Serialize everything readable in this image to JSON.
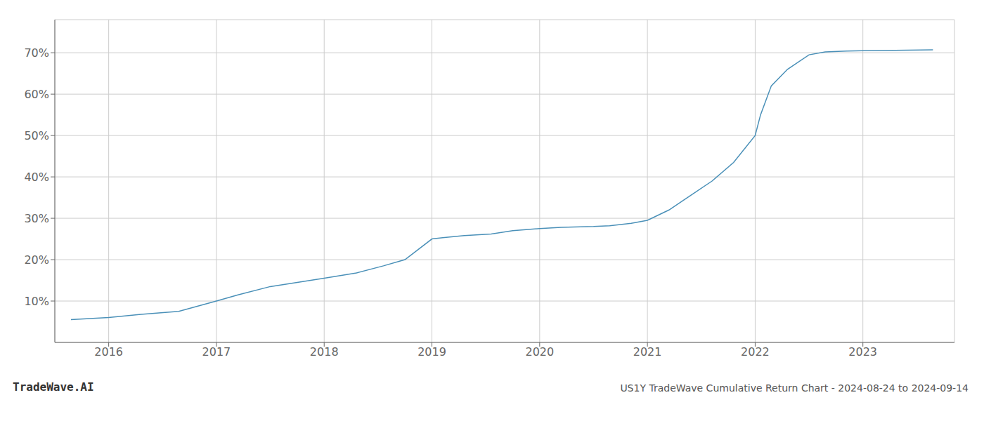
{
  "chart_data": {
    "type": "line",
    "title": "US1Y TradeWave Cumulative Return Chart - 2024-08-24 to 2024-09-14",
    "annotations": [
      "TradeWave.AI"
    ],
    "x": [
      2015.65,
      2016.0,
      2016.3,
      2016.65,
      2017.0,
      2017.2,
      2017.5,
      2017.75,
      2018.0,
      2018.3,
      2018.55,
      2018.75,
      2019.0,
      2019.1,
      2019.3,
      2019.55,
      2019.75,
      2020.0,
      2020.2,
      2020.5,
      2020.65,
      2020.85,
      2021.0,
      2021.2,
      2021.4,
      2021.6,
      2021.8,
      2022.0,
      2022.05,
      2022.15,
      2022.3,
      2022.5,
      2022.65,
      2022.85,
      2023.0,
      2023.3,
      2023.65
    ],
    "values": [
      5.5,
      6.0,
      6.8,
      7.5,
      10.0,
      11.5,
      13.5,
      14.5,
      15.5,
      16.8,
      18.5,
      20.0,
      25.0,
      25.3,
      25.8,
      26.2,
      27.0,
      27.5,
      27.8,
      28.0,
      28.2,
      28.8,
      29.5,
      32.0,
      35.5,
      39.0,
      43.5,
      50.0,
      55.0,
      62.0,
      66.0,
      69.5,
      70.2,
      70.4,
      70.5,
      70.6,
      70.7
    ],
    "color": "#4a90b8",
    "xlim": [
      2015.5,
      2023.85
    ],
    "ylim": [
      0,
      78
    ],
    "xticks": [
      2016,
      2017,
      2018,
      2019,
      2020,
      2021,
      2022,
      2023
    ],
    "yticks": [
      {
        "value": 10,
        "label": "10%"
      },
      {
        "value": 20,
        "label": "20%"
      },
      {
        "value": 30,
        "label": "30%"
      },
      {
        "value": 40,
        "label": "40%"
      },
      {
        "value": 50,
        "label": "50%"
      },
      {
        "value": 60,
        "label": "60%"
      },
      {
        "value": 70,
        "label": "70%"
      }
    ],
    "grid": true
  }
}
